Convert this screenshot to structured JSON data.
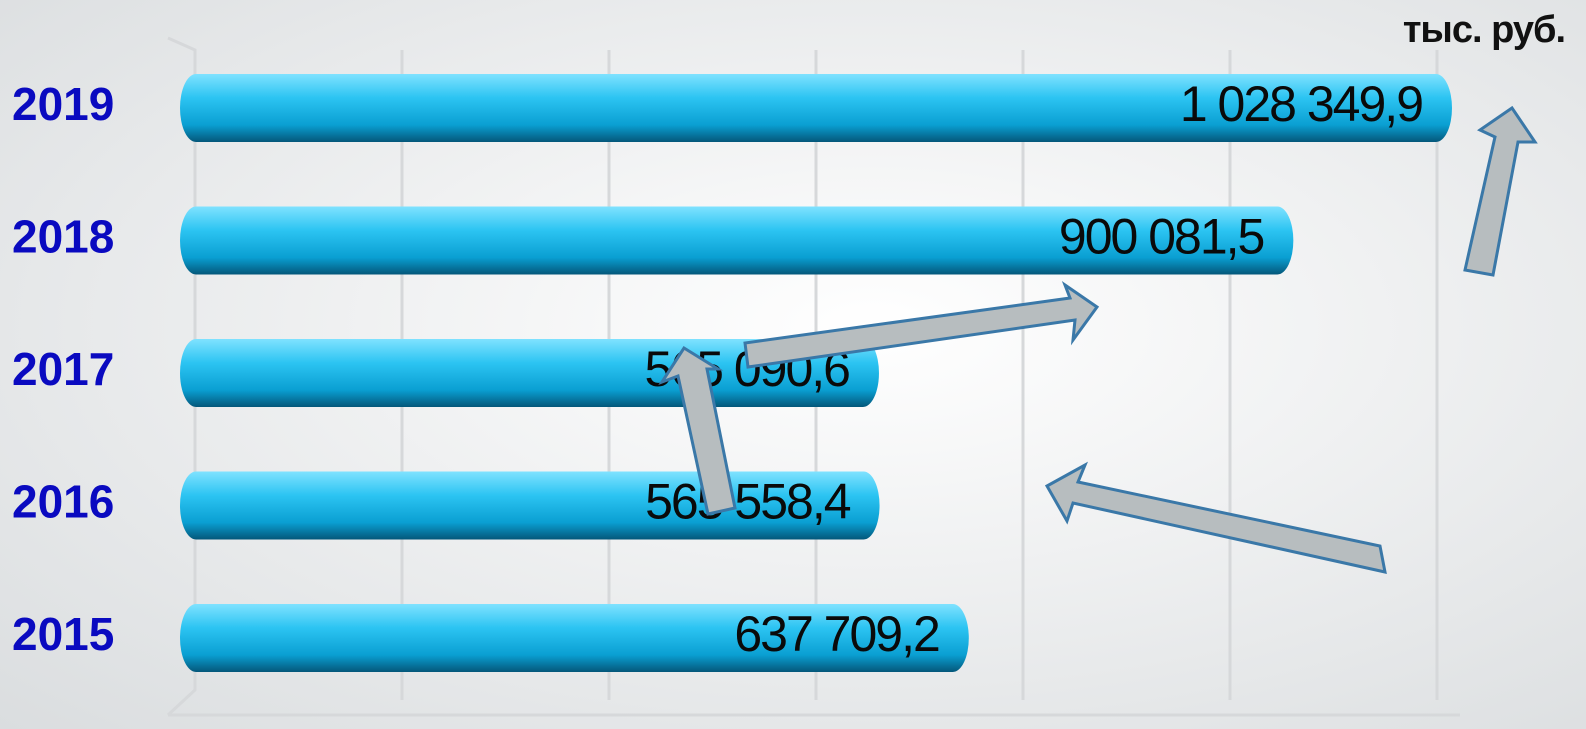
{
  "chart_data": {
    "type": "bar",
    "orientation": "horizontal",
    "unit": "тыс. руб.",
    "categories": [
      "2015",
      "2016",
      "2017",
      "2018",
      "2019"
    ],
    "values": [
      637709.2,
      565558.4,
      565090.6,
      900081.5,
      1028349.9
    ],
    "value_labels": [
      "637 709,2",
      "565 558,4",
      "565 090,6",
      "900 081,5",
      "1 028 349,9"
    ],
    "color": "#1ab8ec"
  }
}
